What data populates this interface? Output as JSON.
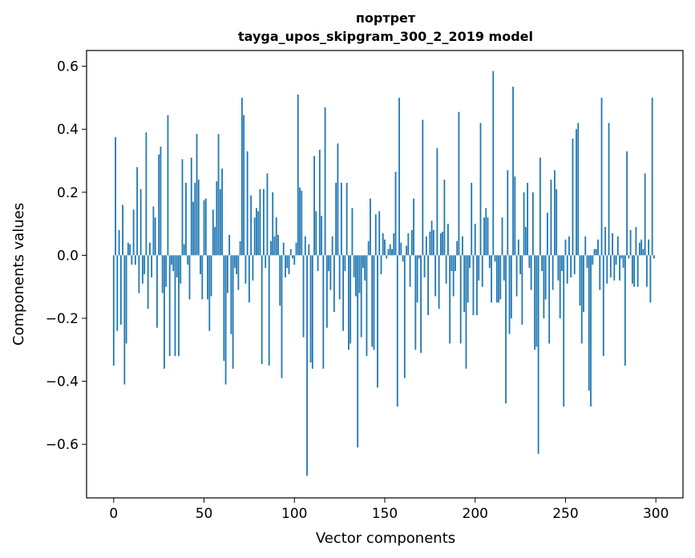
{
  "chart_data": {
    "type": "bar",
    "title": "портрет",
    "subtitle": "tayga_upos_skipgram_300_2_2019 model",
    "xlabel": "Vector components",
    "ylabel": "Components values",
    "xlim": [
      -15,
      315
    ],
    "ylim": [
      -0.77,
      0.65
    ],
    "xticks": [
      0,
      50,
      100,
      150,
      200,
      250,
      300
    ],
    "xtick_labels": [
      "0",
      "50",
      "100",
      "150",
      "200",
      "250",
      "300"
    ],
    "yticks": [
      -0.6,
      -0.4,
      -0.2,
      0.0,
      0.2,
      0.4,
      0.6
    ],
    "ytick_labels": [
      "−0.6",
      "−0.4",
      "−0.2",
      "0.0",
      "0.2",
      "0.4",
      "0.6"
    ],
    "bar_color": "#1f77b4",
    "grid": false,
    "values": [
      -0.35,
      0.375,
      -0.24,
      0.08,
      -0.22,
      0.16,
      -0.41,
      -0.28,
      0.04,
      0.035,
      -0.03,
      0.145,
      -0.03,
      0.28,
      -0.12,
      0.21,
      -0.09,
      -0.06,
      0.39,
      -0.17,
      0.04,
      -0.07,
      0.155,
      0.12,
      -0.23,
      0.32,
      0.345,
      -0.12,
      -0.36,
      -0.1,
      0.445,
      -0.32,
      -0.03,
      -0.05,
      -0.32,
      -0.07,
      -0.32,
      -0.09,
      0.305,
      0.035,
      0.23,
      -0.03,
      -0.14,
      0.31,
      0.17,
      0.23,
      0.385,
      0.24,
      -0.06,
      -0.14,
      0.175,
      0.18,
      -0.14,
      -0.24,
      -0.13,
      0.145,
      0.09,
      0.235,
      0.385,
      0.21,
      0.275,
      -0.335,
      -0.41,
      -0.12,
      0.065,
      -0.25,
      -0.36,
      -0.04,
      -0.06,
      -0.11,
      0.045,
      0.5,
      0.445,
      -0.09,
      0.33,
      -0.15,
      0.19,
      -0.08,
      0.12,
      0.15,
      0.14,
      0.21,
      -0.345,
      0.21,
      -0.04,
      0.26,
      -0.35,
      0.045,
      0.2,
      0.06,
      0.12,
      0.065,
      -0.16,
      -0.39,
      0.04,
      -0.07,
      -0.04,
      -0.06,
      0.02,
      -0.01,
      -0.03,
      0.04,
      0.51,
      0.215,
      0.205,
      -0.26,
      0.06,
      -0.7,
      0.035,
      -0.34,
      -0.36,
      0.315,
      0.14,
      -0.05,
      0.335,
      0.125,
      -0.36,
      0.47,
      -0.23,
      -0.05,
      -0.11,
      0.06,
      -0.18,
      0.23,
      0.355,
      -0.14,
      0.23,
      -0.24,
      -0.05,
      0.23,
      -0.3,
      -0.28,
      0.15,
      -0.07,
      -0.13,
      -0.61,
      -0.12,
      -0.26,
      -0.04,
      -0.08,
      -0.32,
      0.045,
      0.18,
      -0.29,
      -0.3,
      0.13,
      -0.42,
      0.14,
      -0.06,
      0.07,
      0.05,
      -0.01,
      0.02,
      0.035,
      0.02,
      0.07,
      0.265,
      -0.48,
      0.5,
      0.04,
      -0.02,
      -0.39,
      0.03,
      0.07,
      -0.1,
      0.08,
      0.18,
      -0.3,
      -0.15,
      -0.01,
      -0.31,
      0.43,
      -0.07,
      0.06,
      -0.19,
      0.075,
      0.11,
      0.08,
      -0.13,
      0.34,
      -0.17,
      0.07,
      0.075,
      0.24,
      -0.09,
      0.1,
      -0.28,
      -0.05,
      -0.13,
      -0.05,
      0.045,
      0.455,
      -0.28,
      0.06,
      -0.18,
      -0.36,
      -0.15,
      -0.04,
      0.23,
      -0.19,
      0.1,
      -0.19,
      -0.08,
      0.42,
      -0.1,
      0.12,
      0.15,
      0.12,
      -0.04,
      -0.15,
      0.585,
      -0.02,
      -0.15,
      -0.15,
      -0.14,
      0.12,
      -0.08,
      -0.47,
      0.27,
      -0.25,
      -0.2,
      0.535,
      0.25,
      -0.13,
      0.05,
      -0.06,
      -0.22,
      0.2,
      0.09,
      0.23,
      -0.04,
      -0.11,
      0.2,
      -0.3,
      -0.29,
      -0.63,
      0.31,
      -0.05,
      -0.2,
      -0.14,
      0.135,
      -0.28,
      0.24,
      -0.11,
      0.27,
      0.21,
      -0.08,
      -0.2,
      -0.05,
      -0.48,
      0.05,
      -0.09,
      0.06,
      -0.07,
      0.37,
      -0.06,
      0.4,
      0.42,
      -0.16,
      -0.28,
      -0.18,
      0.06,
      -0.04,
      -0.43,
      -0.48,
      -0.03,
      0.02,
      0.02,
      0.05,
      -0.11,
      0.5,
      -0.32,
      0.09,
      -0.09,
      0.42,
      -0.07,
      0.07,
      -0.08,
      -0.03,
      0.06,
      -0.08,
      -0.01,
      -0.04,
      -0.35,
      0.33,
      -0.01,
      0.08,
      -0.09,
      -0.1,
      0.09,
      -0.1,
      0.04,
      0.05,
      0.02,
      0.26,
      -0.1,
      0.05,
      -0.15,
      0.5,
      -0.01
    ]
  }
}
